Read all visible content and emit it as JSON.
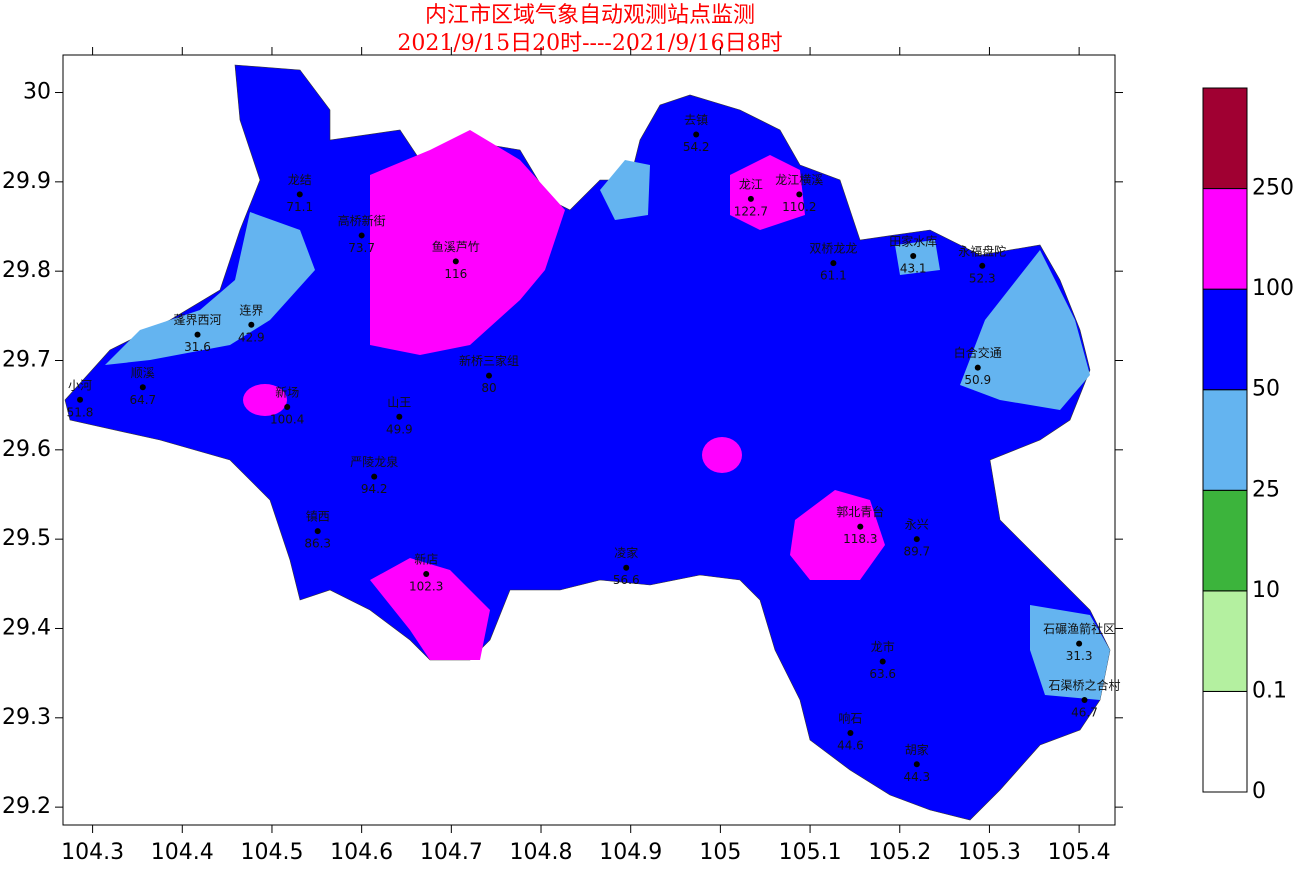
{
  "title": [
    "内江市区域气象自动观测站点监测",
    "2021/9/15日20时----2021/9/16日8时"
  ],
  "xlim": [
    104.267,
    105.44
  ],
  "ylim": [
    29.18,
    30.042
  ],
  "xticks": [
    104.3,
    104.4,
    104.5,
    104.6,
    104.7,
    104.8,
    104.9,
    105,
    105.1,
    105.2,
    105.3,
    105.4
  ],
  "yticks": [
    29.2,
    29.3,
    29.4,
    29.5,
    29.6,
    29.7,
    29.8,
    29.9,
    30
  ],
  "legend": {
    "levels": [
      0,
      0.1,
      10,
      25,
      50,
      100,
      250
    ],
    "colors": [
      "#ffffff",
      "#b4f0a0",
      "#3cb43c",
      "#64b4f0",
      "#0000ff",
      "#ff00ff",
      "#a00032"
    ]
  },
  "stations": [
    {
      "name": "龙结",
      "value": 71.1,
      "lon": 104.531,
      "lat": 29.886
    },
    {
      "name": "龙江",
      "value": 122.7,
      "lon": 105.034,
      "lat": 29.881
    },
    {
      "name": "龙江横溪",
      "value": 110.2,
      "lon": 105.088,
      "lat": 29.886
    },
    {
      "name": "去镇",
      "value": 54.2,
      "lon": 104.973,
      "lat": 29.953
    },
    {
      "name": "鱼溪芦竹",
      "value": 116,
      "lon": 104.705,
      "lat": 29.811
    },
    {
      "name": "连界",
      "value": 42.9,
      "lon": 104.477,
      "lat": 29.74
    },
    {
      "name": "蓬界西河",
      "value": 31.6,
      "lon": 104.417,
      "lat": 29.729
    },
    {
      "name": "顺溪",
      "value": 64.7,
      "lon": 104.356,
      "lat": 29.67
    },
    {
      "name": "小河",
      "value": 51.8,
      "lon": 104.286,
      "lat": 29.656
    },
    {
      "name": "新场",
      "value": 100.4,
      "lon": 104.517,
      "lat": 29.648
    },
    {
      "name": "山王",
      "value": 49.9,
      "lon": 104.642,
      "lat": 29.637
    },
    {
      "name": "镇西",
      "value": 86.3,
      "lon": 104.551,
      "lat": 29.509
    },
    {
      "name": "新店",
      "value": 102.3,
      "lon": 104.672,
      "lat": 29.461
    },
    {
      "name": "高桥新街",
      "value": 73.7,
      "lon": 104.6,
      "lat": 29.84
    },
    {
      "name": "严陵龙泉",
      "value": 94.2,
      "lon": 104.614,
      "lat": 29.57
    },
    {
      "name": "新桥三家组",
      "value": 80,
      "lon": 104.742,
      "lat": 29.683
    },
    {
      "name": "永福盘陀",
      "value": 52.3,
      "lon": 105.292,
      "lat": 29.806
    },
    {
      "name": "田家水库",
      "value": 43.1,
      "lon": 105.215,
      "lat": 29.817
    },
    {
      "name": "双桥龙龙",
      "value": 61.1,
      "lon": 105.126,
      "lat": 29.809
    },
    {
      "name": "白合交通",
      "value": 50.9,
      "lon": 105.287,
      "lat": 29.692
    },
    {
      "name": "石碾渔箭社区",
      "value": 31.3,
      "lon": 105.4,
      "lat": 29.383
    },
    {
      "name": "石渠桥之合村",
      "value": 46.7,
      "lon": 105.406,
      "lat": 29.32
    },
    {
      "name": "龙市",
      "value": 63.6,
      "lon": 105.181,
      "lat": 29.363
    },
    {
      "name": "响石",
      "value": 44.6,
      "lon": 105.145,
      "lat": 29.283
    },
    {
      "name": "胡家",
      "value": 44.3,
      "lon": 105.219,
      "lat": 29.248
    },
    {
      "name": "永兴",
      "value": 89.7,
      "lon": 105.219,
      "lat": 29.5
    },
    {
      "name": "郭北青台",
      "value": 118.3,
      "lon": 105.156,
      "lat": 29.514
    },
    {
      "name": "凌家",
      "value": 56.6,
      "lon": 104.895,
      "lat": 29.468
    }
  ]
}
